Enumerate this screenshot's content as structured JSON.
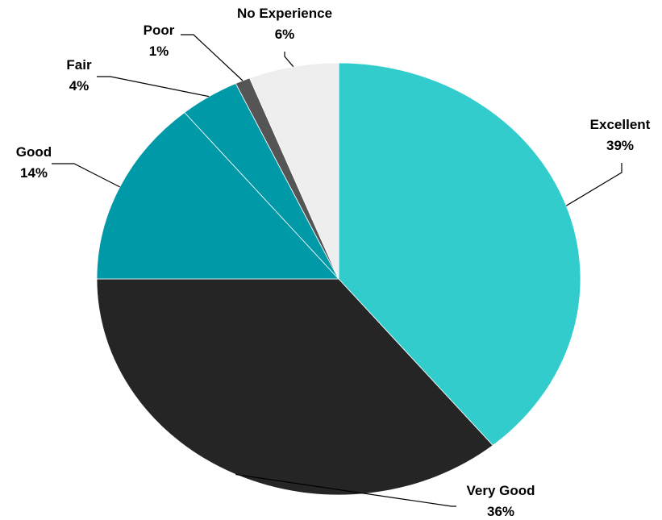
{
  "chart_data": {
    "type": "pie",
    "title": "",
    "slices": [
      {
        "key": "excellent",
        "label": "Excellent",
        "value": 39,
        "value_label": "39%",
        "color": "#33CCCC"
      },
      {
        "key": "very_good",
        "label": "Very Good",
        "value": 36,
        "value_label": "36%",
        "color": "#252525"
      },
      {
        "key": "good",
        "label": "Good",
        "value": 14,
        "value_label": "14%",
        "color": "#0099A8"
      },
      {
        "key": "fair",
        "label": "Fair",
        "value": 4,
        "value_label": "4%",
        "color": "#0099A8"
      },
      {
        "key": "poor",
        "label": "Poor",
        "value": 1,
        "value_label": "1%",
        "color": "#555555"
      },
      {
        "key": "no_experience",
        "label": "No Experience",
        "value": 6,
        "value_label": "6%",
        "color": "#EEEEEE"
      }
    ],
    "legend": "none",
    "data_labels": "outside-with-leader-lines"
  }
}
